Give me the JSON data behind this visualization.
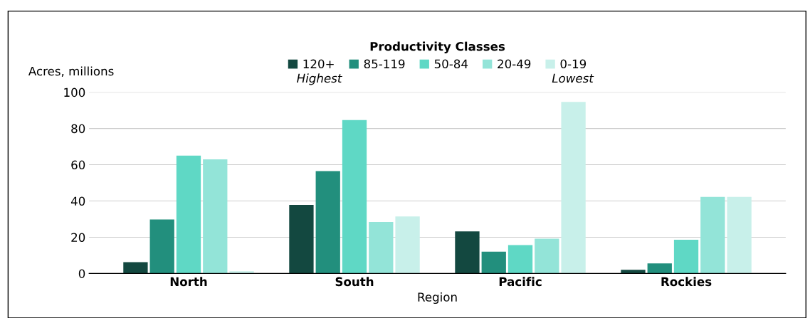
{
  "chart_data": {
    "type": "bar",
    "xlabel": "Region",
    "ylabel": "Acres, millions",
    "legend_title": "Productivity Classes",
    "annotations": [
      "Highest",
      "Lowest"
    ],
    "categories": [
      "North",
      "South",
      "Pacific",
      "Rockies"
    ],
    "series": [
      {
        "name": "120+",
        "color": "#134840",
        "values": [
          6.2,
          37.8,
          23.2,
          2
        ]
      },
      {
        "name": "85-119",
        "color": "#228f7d",
        "values": [
          29.8,
          56.5,
          12,
          5.6
        ]
      },
      {
        "name": "50-84",
        "color": "#5fd8c5",
        "values": [
          65,
          84.6,
          15.7,
          18.6
        ]
      },
      {
        "name": "20-49",
        "color": "#93e4d8",
        "values": [
          63,
          28.4,
          19.2,
          42.3
        ]
      },
      {
        "name": "0-19",
        "color": "#c8f0ea",
        "values": [
          1.2,
          31.5,
          94.7,
          42.3
        ]
      }
    ],
    "ylim": [
      0,
      100
    ],
    "yticks": [
      0,
      20,
      40,
      60,
      80,
      100
    ],
    "grid": "y",
    "legend": "top"
  }
}
